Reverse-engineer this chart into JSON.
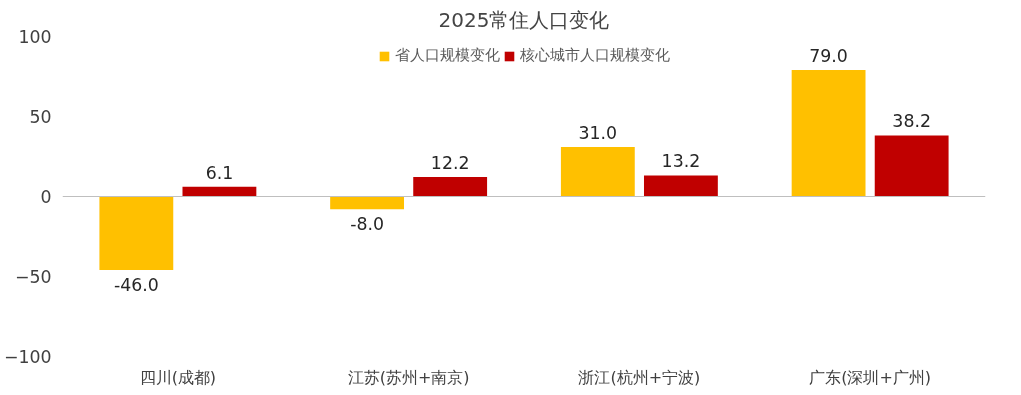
{
  "chart_data": {
    "type": "bar",
    "title": "2025常住人口变化",
    "categories": [
      "四川(成都)",
      "江苏(苏州+南京)",
      "浙江(杭州+宁波)",
      "广东(深圳+广州)"
    ],
    "series": [
      {
        "name": "省人口规模变化",
        "color": "#ffc000",
        "values": [
          -46.0,
          -8.0,
          31.0,
          79.0
        ],
        "value_labels": [
          "-46.0",
          "-8.0",
          "31.0",
          "79.0"
        ]
      },
      {
        "name": "核心城市人口规模变化",
        "color": "#c00000",
        "values": [
          6.1,
          12.2,
          13.2,
          38.2
        ],
        "value_labels": [
          "6.1",
          "12.2",
          "13.2",
          "38.2"
        ]
      }
    ],
    "ylim": [
      -100,
      100
    ],
    "yticks": [
      -100,
      -50,
      0,
      50,
      100
    ],
    "legend": "top"
  }
}
